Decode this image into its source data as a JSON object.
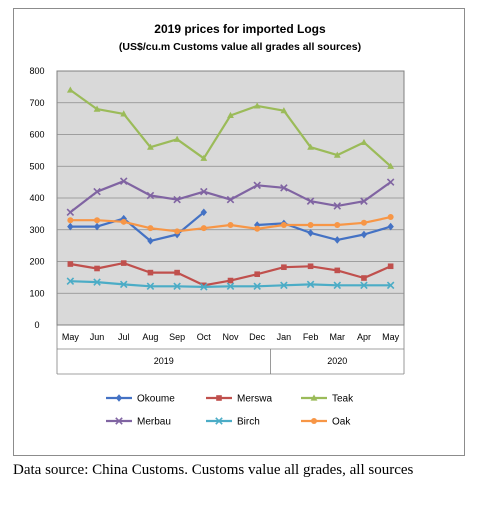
{
  "chart_data": {
    "type": "line",
    "title": "2019 prices for imported Logs",
    "subtitle": "(US$/cu.m Customs value all grades all sources)",
    "categories": [
      "May",
      "Jun",
      "Jul",
      "Aug",
      "Sep",
      "Oct",
      "Nov",
      "Dec",
      "Jan",
      "Feb",
      "Mar",
      "Apr",
      "May"
    ],
    "year_groups": [
      {
        "label": "2019",
        "start": 0,
        "end": 7
      },
      {
        "label": "2020",
        "start": 8,
        "end": 12
      }
    ],
    "ylim": [
      0,
      800
    ],
    "yticks": [
      "0",
      "100",
      "200",
      "300",
      "400",
      "500",
      "600",
      "700",
      "800"
    ],
    "grid": true,
    "legend_position": "bottom",
    "series": [
      {
        "name": "Okoume",
        "color": "#4472C4",
        "marker": "diamond",
        "values": [
          310,
          310,
          335,
          265,
          285,
          355,
          null,
          315,
          320,
          290,
          268,
          285,
          310
        ]
      },
      {
        "name": "Merswa",
        "color": "#C0504D",
        "marker": "square",
        "values": [
          192,
          178,
          195,
          165,
          165,
          125,
          140,
          160,
          182,
          185,
          172,
          148,
          185
        ]
      },
      {
        "name": "Teak",
        "color": "#9BBB59",
        "marker": "triangle",
        "values": [
          740,
          680,
          665,
          560,
          585,
          525,
          660,
          690,
          675,
          560,
          535,
          575,
          500
        ]
      },
      {
        "name": "Merbau",
        "color": "#8064A2",
        "marker": "x",
        "values": [
          355,
          420,
          453,
          408,
          395,
          420,
          395,
          440,
          432,
          390,
          375,
          390,
          450
        ]
      },
      {
        "name": "Birch",
        "color": "#4BACC6",
        "marker": "x",
        "values": [
          138,
          135,
          128,
          122,
          122,
          120,
          122,
          122,
          125,
          128,
          125,
          125,
          125
        ]
      },
      {
        "name": "Oak",
        "color": "#F79646",
        "marker": "circle",
        "values": [
          330,
          330,
          325,
          305,
          295,
          305,
          315,
          303,
          315,
          315,
          315,
          322,
          340
        ]
      }
    ]
  },
  "caption": "Data source: China Customs. Customs value all grades, all sources"
}
